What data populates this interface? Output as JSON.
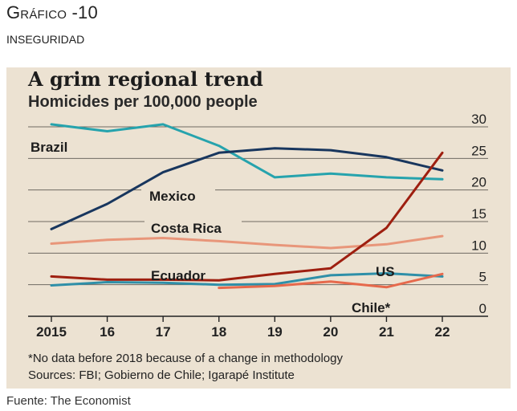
{
  "header": {
    "title": "Gráfico -10",
    "subtitle": "INSEGURIDAD"
  },
  "footer": {
    "source": "Fuente: The Economist"
  },
  "colors": {
    "panel_bg": "#ece2d2",
    "grid": "#6f6a62",
    "brazil": "#26a3ad",
    "mexico": "#18365e",
    "costa_rica": "#e8967a",
    "ecuador": "#9e1f10",
    "us": "#2f8fa8",
    "chile": "#e6694c"
  },
  "chart_data": {
    "type": "line",
    "title": "A grim regional trend",
    "subtitle": "Homicides per 100,000 people",
    "x": [
      2015,
      2016,
      2017,
      2018,
      2019,
      2020,
      2021,
      2022
    ],
    "x_tick_labels": [
      "2015",
      "16",
      "17",
      "18",
      "19",
      "20",
      "21",
      "22"
    ],
    "y_ticks": [
      0,
      5,
      10,
      15,
      20,
      25,
      30
    ],
    "ylim": [
      0,
      30
    ],
    "xlabel": "",
    "ylabel": "",
    "grid": true,
    "series": [
      {
        "name": "Brazil",
        "key": "brazil",
        "x": [
          2015,
          2016,
          2017,
          2018,
          2019,
          2020,
          2021,
          2022
        ],
        "values": [
          30.4,
          29.3,
          30.4,
          27.0,
          22.0,
          22.6,
          22.0,
          21.7
        ]
      },
      {
        "name": "Mexico",
        "key": "mexico",
        "x": [
          2015,
          2016,
          2017,
          2018,
          2019,
          2020,
          2021,
          2022
        ],
        "values": [
          13.8,
          17.8,
          22.8,
          25.9,
          26.6,
          26.3,
          25.2,
          23.1
        ]
      },
      {
        "name": "Costa Rica",
        "key": "costa_rica",
        "x": [
          2015,
          2016,
          2017,
          2018,
          2019,
          2020,
          2021,
          2022
        ],
        "values": [
          11.5,
          12.1,
          12.4,
          11.9,
          11.3,
          10.8,
          11.4,
          12.7
        ]
      },
      {
        "name": "Ecuador",
        "key": "ecuador",
        "x": [
          2015,
          2016,
          2017,
          2018,
          2019,
          2020,
          2021,
          2022
        ],
        "values": [
          6.3,
          5.8,
          5.8,
          5.7,
          6.7,
          7.6,
          14.0,
          25.9
        ]
      },
      {
        "name": "US",
        "key": "us",
        "x": [
          2015,
          2016,
          2017,
          2018,
          2019,
          2020,
          2021,
          2022
        ],
        "values": [
          4.9,
          5.4,
          5.3,
          5.0,
          5.1,
          6.5,
          6.8,
          6.3
        ]
      },
      {
        "name": "Chile*",
        "key": "chile",
        "x": [
          2018,
          2019,
          2020,
          2021,
          2022
        ],
        "values": [
          4.5,
          4.8,
          5.5,
          4.6,
          6.7
        ]
      }
    ],
    "footnote": "*No data before 2018 because of a change in methodology",
    "sources": "Sources: FBI; Gobierno de Chile; Igarapé Institute"
  }
}
